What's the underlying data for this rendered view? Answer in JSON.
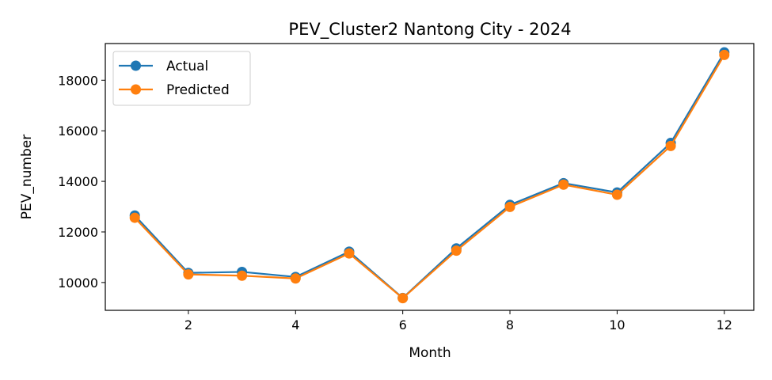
{
  "chart_data": {
    "type": "line",
    "title": "PEV_Cluster2 Nantong City - 2024",
    "xlabel": "Month",
    "ylabel": "PEV_number",
    "x": [
      1,
      2,
      3,
      4,
      5,
      6,
      7,
      8,
      9,
      10,
      11,
      12
    ],
    "xlim": [
      0.45,
      12.55
    ],
    "ylim": [
      8900,
      19450
    ],
    "xticks": [
      2,
      4,
      6,
      8,
      10,
      12
    ],
    "yticks": [
      10000,
      12000,
      14000,
      16000,
      18000
    ],
    "grid": false,
    "legend_position": "top-left",
    "series": [
      {
        "name": "Actual",
        "color": "#1f77b4",
        "marker": "circle",
        "values": [
          12650,
          10380,
          10420,
          10220,
          11220,
          9390,
          11350,
          13070,
          13930,
          13560,
          15520,
          19100
        ]
      },
      {
        "name": "Predicted",
        "color": "#ff7f0e",
        "marker": "circle",
        "values": [
          12560,
          10320,
          10270,
          10160,
          11150,
          9380,
          11260,
          12990,
          13870,
          13470,
          15400,
          19000
        ]
      }
    ]
  }
}
